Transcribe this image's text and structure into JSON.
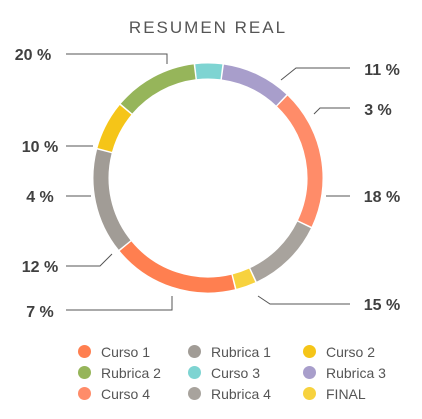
{
  "chart_data": {
    "type": "pie",
    "title": "RESUMEN REAL",
    "slices": [
      {
        "name": "Curso 1",
        "value": 18,
        "label": "18 %",
        "color": "#FF7F50"
      },
      {
        "name": "Rubrica 1",
        "value": 15,
        "label": "15 %",
        "color": "#A19C96"
      },
      {
        "name": "Curso 2",
        "value": 7,
        "label": "7 %",
        "color": "#F5C518"
      },
      {
        "name": "Rubrica 2",
        "value": 12,
        "label": "12 %",
        "color": "#96B55A"
      },
      {
        "name": "Curso 3",
        "value": 4,
        "label": "4 %",
        "color": "#7ED4D2"
      },
      {
        "name": "Rubrica 3",
        "value": 10,
        "label": "10 %",
        "color": "#A89ECB"
      },
      {
        "name": "Curso 4",
        "value": 20,
        "label": "20 %",
        "color": "#FF8C69"
      },
      {
        "name": "Rubrica 4",
        "value": 11,
        "label": "11 %",
        "color": "#A8A39D"
      },
      {
        "name": "FINAL",
        "value": 3,
        "label": "3 %",
        "color": "#F7D23E"
      }
    ],
    "legend_order": [
      "Curso 1",
      "Rubrica 1",
      "Curso 2",
      "Rubrica 2",
      "Curso 3",
      "Rubrica 3",
      "Curso 4",
      "Rubrica 4",
      "FINAL"
    ],
    "legend_position": "bottom"
  }
}
